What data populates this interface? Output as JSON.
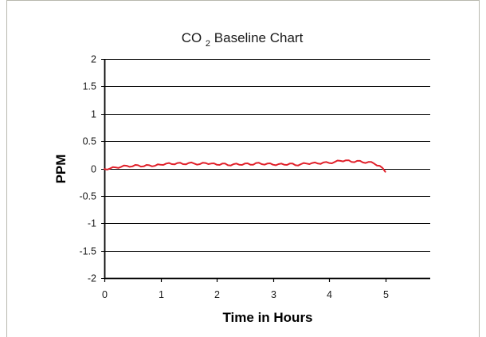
{
  "chart_data": {
    "type": "line",
    "title": {
      "prefix": "CO",
      "subscript": "2",
      "suffix": " Baseline Chart"
    },
    "xlabel": "Time in Hours",
    "ylabel": "PPM",
    "xlim": [
      0,
      5.8
    ],
    "ylim": [
      -2,
      2
    ],
    "x_ticks": [
      "0",
      "1",
      "2",
      "3",
      "4",
      "5"
    ],
    "y_ticks": [
      "2",
      "1.5",
      "1",
      "0.5",
      "0",
      "-0.5",
      "-1",
      "-1.5",
      "-2"
    ],
    "grid": "horizontal",
    "series": [
      {
        "color": "#e0202a",
        "x": [
          0,
          0.1,
          0.2,
          0.3,
          0.4,
          0.5,
          0.6,
          0.7,
          0.8,
          0.9,
          1.0,
          1.1,
          1.2,
          1.3,
          1.4,
          1.5,
          1.6,
          1.7,
          1.8,
          1.9,
          2.0,
          2.1,
          2.2,
          2.3,
          2.4,
          2.5,
          2.6,
          2.7,
          2.8,
          2.9,
          3.0,
          3.1,
          3.2,
          3.3,
          3.4,
          3.5,
          3.6,
          3.7,
          3.8,
          3.9,
          4.0,
          4.1,
          4.2,
          4.3,
          4.4,
          4.5,
          4.6,
          4.7,
          4.8,
          4.9,
          5.0
        ],
        "y": [
          -0.01,
          0.0,
          0.02,
          0.03,
          0.05,
          0.04,
          0.06,
          0.04,
          0.06,
          0.05,
          0.07,
          0.09,
          0.08,
          0.1,
          0.08,
          0.1,
          0.09,
          0.08,
          0.1,
          0.09,
          0.07,
          0.09,
          0.06,
          0.08,
          0.07,
          0.09,
          0.07,
          0.1,
          0.08,
          0.09,
          0.07,
          0.08,
          0.07,
          0.09,
          0.06,
          0.08,
          0.09,
          0.1,
          0.09,
          0.11,
          0.1,
          0.12,
          0.14,
          0.15,
          0.12,
          0.14,
          0.11,
          0.12,
          0.09,
          0.05,
          -0.06
        ]
      }
    ]
  }
}
